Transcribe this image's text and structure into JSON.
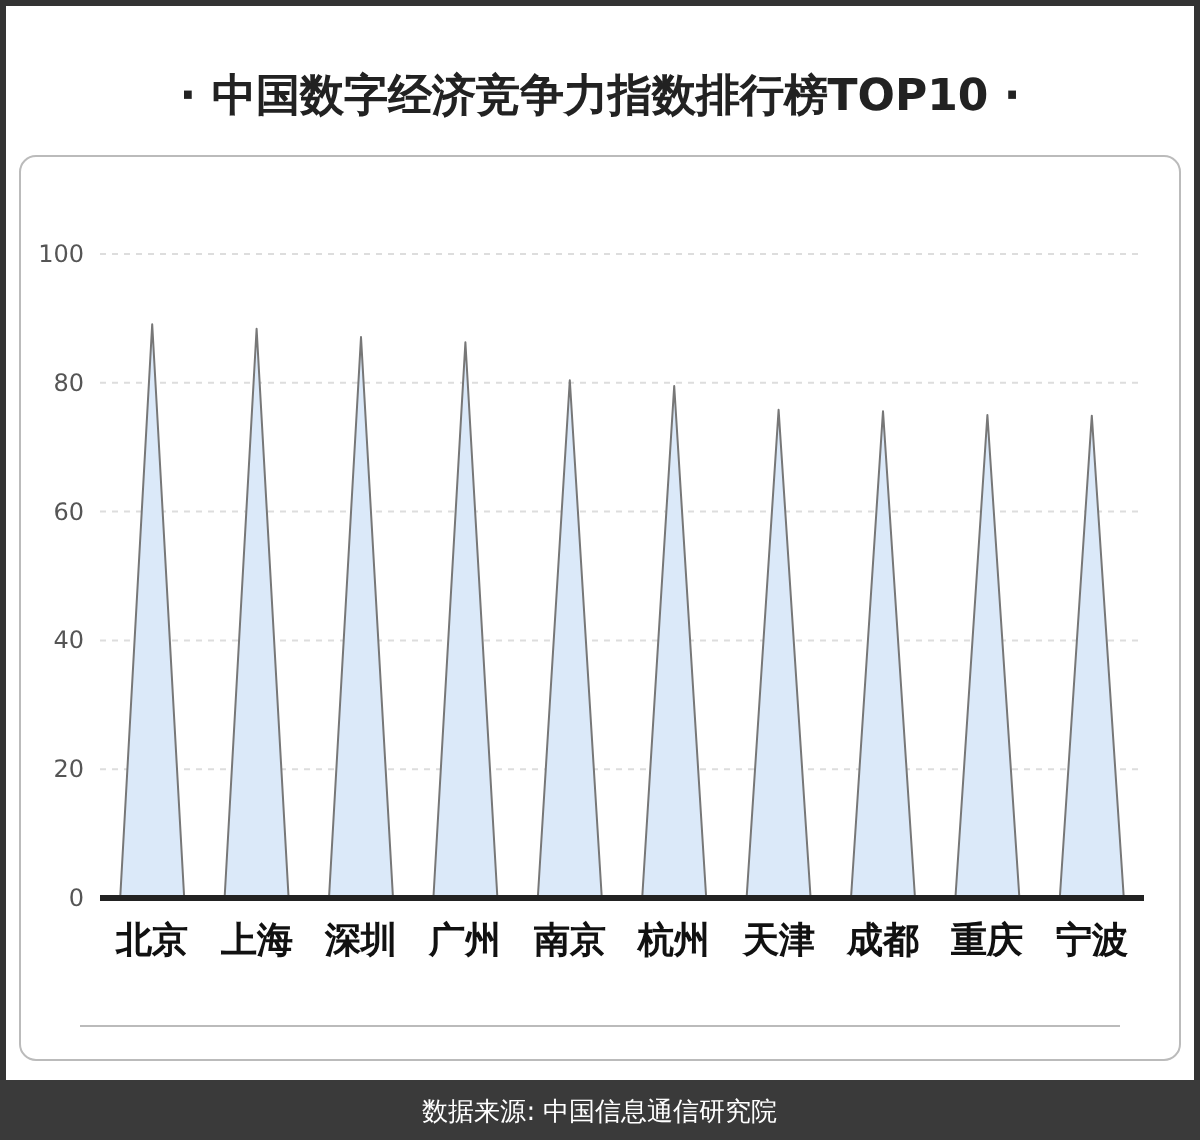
{
  "chart_data": {
    "type": "bar",
    "title": "· 中国数字经济竞争力指数排行榜TOP10 ·",
    "categories": [
      "北京",
      "上海",
      "深圳",
      "广州",
      "南京",
      "杭州",
      "天津",
      "成都",
      "重庆",
      "宁波"
    ],
    "values": [
      89.1,
      88.4,
      87.1,
      86.3,
      80.4,
      79.5,
      75.8,
      75.6,
      75.0,
      74.9
    ],
    "color": "#dbe9f9",
    "ylim": [
      0,
      100
    ],
    "yticks": [
      0,
      20,
      40,
      60,
      80,
      100
    ],
    "grid": "y",
    "annotations": [
      "数据来源: 中国信息通信研究院"
    ]
  }
}
